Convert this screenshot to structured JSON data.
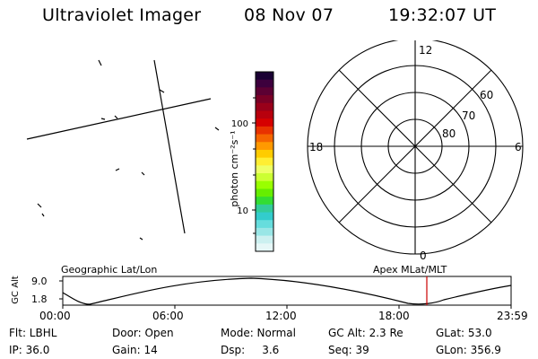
{
  "header": {
    "instrument": "Ultraviolet Imager",
    "date": "08 Nov 07",
    "time": "19:32:07 UT"
  },
  "colorbar": {
    "label": "photon cm⁻²s⁻¹",
    "tick_high": "100",
    "tick_low": "10",
    "colors": [
      "#1a0033",
      "#3d003d",
      "#5c0033",
      "#7a0026",
      "#99001a",
      "#b8000d",
      "#d60000",
      "#e83300",
      "#f56600",
      "#ff9900",
      "#ffcc00",
      "#ffee33",
      "#eeff66",
      "#ccff33",
      "#99ff00",
      "#66ee00",
      "#33dd33",
      "#33cc99",
      "#33cccc",
      "#66dddd",
      "#99e6e6",
      "#ccf0f0",
      "#e6f7f7"
    ]
  },
  "polar": {
    "mlt_labels": {
      "top": "12",
      "left": "18",
      "right": "6",
      "bottom": "0"
    },
    "lat_labels": [
      "60",
      "70",
      "80"
    ]
  },
  "timeline": {
    "left_title": "Geographic Lat/Lon",
    "right_title": "Apex MLat/MLT",
    "y_axis_label": "GC Alt",
    "y_ticks": [
      "9.0",
      "1.8"
    ],
    "x_ticks": [
      "00:00",
      "06:00",
      "12:00",
      "18:00",
      "23:59"
    ],
    "marker_color": "#cc0000"
  },
  "info": {
    "filter": "Flt: LBHL",
    "door": "Door: Open",
    "mode": "Mode: Normal",
    "gc_alt": "GC Alt: 2.3 Re",
    "glat": "GLat:  53.0",
    "ip": "IP: 36.0",
    "gain": "Gain: 14",
    "dsp": "Dsp:     3.6",
    "seq": "Seq: 39",
    "glon": "GLon: 356.9"
  }
}
